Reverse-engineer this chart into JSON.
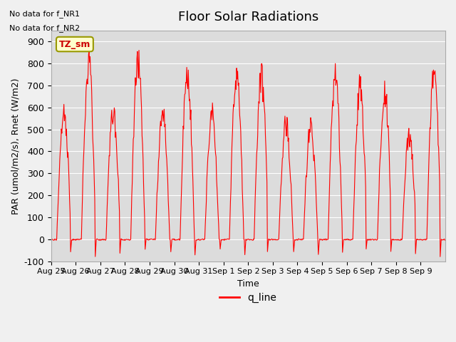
{
  "title": "Floor Solar Radiations",
  "xlabel": "Time",
  "ylabel": "PAR (umol/m2/s), Rnet (W/m2)",
  "ylim": [
    -100,
    950
  ],
  "yticks": [
    -100,
    0,
    100,
    200,
    300,
    400,
    500,
    600,
    700,
    800,
    900
  ],
  "x_tick_labels": [
    "Aug 25",
    "Aug 26",
    "Aug 27",
    "Aug 28",
    "Aug 29",
    "Aug 30",
    "Aug 31",
    "Sep 1",
    "Sep 2",
    "Sep 3",
    "Sep 4",
    "Sep 5",
    "Sep 6",
    "Sep 7",
    "Sep 8",
    "Sep 9"
  ],
  "text_top_left_1": "No data for f_NR1",
  "text_top_left_2": "No data for f_NR2",
  "tz_label": "TZ_sm",
  "line_color": "#ff0000",
  "line_label": "q_line",
  "fig_facecolor": "#f0f0f0",
  "plot_bg_color": "#dcdcdc",
  "manual_peaks": [
    610,
    850,
    605,
    850,
    600,
    810,
    600,
    800,
    770,
    550,
    530,
    775,
    720,
    700,
    490,
    810
  ]
}
